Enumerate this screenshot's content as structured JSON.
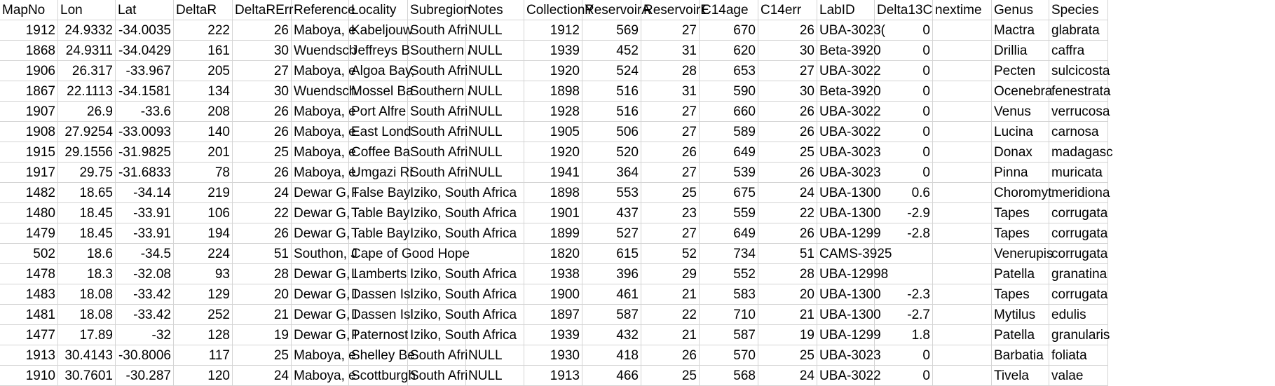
{
  "columns": [
    {
      "key": "MapNo",
      "label": "MapNo",
      "type": "num",
      "width": 96
    },
    {
      "key": "Lon",
      "label": "Lon",
      "type": "num",
      "width": 96
    },
    {
      "key": "Lat",
      "label": "Lat",
      "type": "num",
      "width": 96
    },
    {
      "key": "DeltaR",
      "label": "DeltaR",
      "type": "num",
      "width": 96
    },
    {
      "key": "DeltaRErr",
      "label": "DeltaRErr",
      "type": "num",
      "width": 96
    },
    {
      "key": "Reference",
      "label": "Reference",
      "type": "txt",
      "width": 96
    },
    {
      "key": "Locality",
      "label": "Locality",
      "type": "txt",
      "width": 96
    },
    {
      "key": "Subregion",
      "label": "Subregion",
      "type": "txt",
      "width": 96
    },
    {
      "key": "Notes",
      "label": "Notes",
      "type": "txt",
      "width": 96
    },
    {
      "key": "CollectionYear",
      "label": "CollectionY",
      "type": "num",
      "width": 96
    },
    {
      "key": "ReservoirAge",
      "label": "ReservoirA",
      "type": "num",
      "width": 96
    },
    {
      "key": "ReservoirErr",
      "label": "ReservoirE",
      "type": "num",
      "width": 96
    },
    {
      "key": "C14age",
      "label": "C14age",
      "type": "num",
      "width": 96
    },
    {
      "key": "C14err",
      "label": "C14err",
      "type": "num",
      "width": 96
    },
    {
      "key": "LabID",
      "label": "LabID",
      "type": "txt",
      "width": 96
    },
    {
      "key": "Delta13C",
      "label": "Delta13C",
      "type": "num",
      "width": 96
    },
    {
      "key": "nextime",
      "label": "nextime",
      "type": "txt",
      "width": 96
    },
    {
      "key": "Genus",
      "label": "Genus",
      "type": "txt",
      "width": 96
    },
    {
      "key": "Species",
      "label": "Species",
      "type": "txt",
      "width": 96
    }
  ],
  "rows": [
    [
      "1912",
      "24.9332",
      "-34.0035",
      "222",
      "26",
      "Maboya, e",
      "Kabeljouw",
      "South Afri",
      "NULL",
      "1912",
      "569",
      "27",
      "670",
      "26",
      "UBA-3023(",
      "0",
      "",
      "Mactra",
      "glabrata"
    ],
    [
      "1868",
      "24.9311",
      "-34.0429",
      "161",
      "30",
      "Wuendsch",
      "Jeffreys B",
      "Southern /",
      "NULL",
      "1939",
      "452",
      "31",
      "620",
      "30",
      "Beta-3920",
      "0",
      "",
      "Drillia",
      "caffra"
    ],
    [
      "1906",
      "26.317",
      "-33.967",
      "205",
      "27",
      "Maboya, e",
      "Algoa Bay,",
      "South Afri",
      "NULL",
      "1920",
      "524",
      "28",
      "653",
      "27",
      "UBA-3022",
      "0",
      "",
      "Pecten",
      "sulcicosta"
    ],
    [
      "1867",
      "22.1113",
      "-34.1581",
      "134",
      "30",
      "Wuendsch",
      "Mossel Ba",
      "Southern /",
      "NULL",
      "1898",
      "516",
      "31",
      "590",
      "30",
      "Beta-3920",
      "0",
      "",
      "Ocenebra",
      "fenestrata"
    ],
    [
      "1907",
      "26.9",
      "-33.6",
      "208",
      "26",
      "Maboya, e",
      "Port Alfre",
      "South Afri",
      "NULL",
      "1928",
      "516",
      "27",
      "660",
      "26",
      "UBA-3022",
      "0",
      "",
      "Venus",
      "verrucosa"
    ],
    [
      "1908",
      "27.9254",
      "-33.0093",
      "140",
      "26",
      "Maboya, e",
      "East Lond",
      "South Afri",
      "NULL",
      "1905",
      "506",
      "27",
      "589",
      "26",
      "UBA-3022",
      "0",
      "",
      "Lucina",
      "carnosa"
    ],
    [
      "1915",
      "29.1556",
      "-31.9825",
      "201",
      "25",
      "Maboya, e",
      "Coffee Ba",
      "South Afri",
      "NULL",
      "1920",
      "520",
      "26",
      "649",
      "25",
      "UBA-3023",
      "0",
      "",
      "Donax",
      "madagasc"
    ],
    [
      "1917",
      "29.75",
      "-31.6833",
      "78",
      "26",
      "Maboya, e",
      "Umgazi Ri",
      "South Afri",
      "NULL",
      "1941",
      "364",
      "27",
      "539",
      "26",
      "UBA-3023",
      "0",
      "",
      "Pinna",
      "muricata"
    ],
    [
      "1482",
      "18.65",
      "-34.14",
      "219",
      "24",
      "Dewar G, I",
      "False Bay",
      "Iziko, South Africa",
      "",
      "1898",
      "553",
      "25",
      "675",
      "24",
      "UBA-1300",
      "0.6",
      "",
      "Choromyt",
      "meridiona"
    ],
    [
      "1480",
      "18.45",
      "-33.91",
      "106",
      "22",
      "Dewar G, I",
      "Table Bay",
      "Iziko, South Africa",
      "",
      "1901",
      "437",
      "23",
      "559",
      "22",
      "UBA-1300",
      "-2.9",
      "",
      "Tapes",
      "corrugata"
    ],
    [
      "1479",
      "18.45",
      "-33.91",
      "194",
      "26",
      "Dewar G, I",
      "Table Bay",
      "Iziko, South Africa",
      "",
      "1899",
      "527",
      "27",
      "649",
      "26",
      "UBA-1299",
      "-2.8",
      "",
      "Tapes",
      "corrugata"
    ],
    [
      "502",
      "18.6",
      "-34.5",
      "224",
      "51",
      "Southon, J",
      "Cape of Good Hope",
      "",
      "",
      "1820",
      "615",
      "52",
      "734",
      "51",
      "CAMS-3925",
      "",
      "",
      "Venerupis",
      "corrugata"
    ],
    [
      "1478",
      "18.3",
      "-32.08",
      "93",
      "28",
      "Dewar G, I",
      "Lamberts",
      "Iziko, South Africa",
      "",
      "1938",
      "396",
      "29",
      "552",
      "28",
      "UBA-12998",
      "",
      "",
      "Patella",
      "granatina"
    ],
    [
      "1483",
      "18.08",
      "-33.42",
      "129",
      "20",
      "Dewar G, I",
      "Dassen Isl",
      "Iziko, South Africa",
      "",
      "1900",
      "461",
      "21",
      "583",
      "20",
      "UBA-1300",
      "-2.3",
      "",
      "Tapes",
      "corrugata"
    ],
    [
      "1481",
      "18.08",
      "-33.42",
      "252",
      "21",
      "Dewar G, I",
      "Dassen Isl",
      "Iziko, South Africa",
      "",
      "1897",
      "587",
      "22",
      "710",
      "21",
      "UBA-1300",
      "-2.7",
      "",
      "Mytilus",
      "edulis"
    ],
    [
      "1477",
      "17.89",
      "-32",
      "128",
      "19",
      "Dewar G, I",
      "Paternost",
      "Iziko, South Africa",
      "",
      "1939",
      "432",
      "21",
      "587",
      "19",
      "UBA-1299",
      "1.8",
      "",
      "Patella",
      "granularis"
    ],
    [
      "1913",
      "30.4143",
      "-30.8006",
      "117",
      "25",
      "Maboya, e",
      "Shelley Be",
      "South Afri",
      "NULL",
      "1930",
      "418",
      "26",
      "570",
      "25",
      "UBA-3023",
      "0",
      "",
      "Barbatia",
      "foliata"
    ],
    [
      "1910",
      "30.7601",
      "-30.287",
      "120",
      "24",
      "Maboya, e",
      "Scottburgh",
      "South Afri",
      "NULL",
      "1913",
      "466",
      "25",
      "568",
      "24",
      "UBA-3022",
      "0",
      "",
      "Tivela",
      "valae"
    ]
  ]
}
